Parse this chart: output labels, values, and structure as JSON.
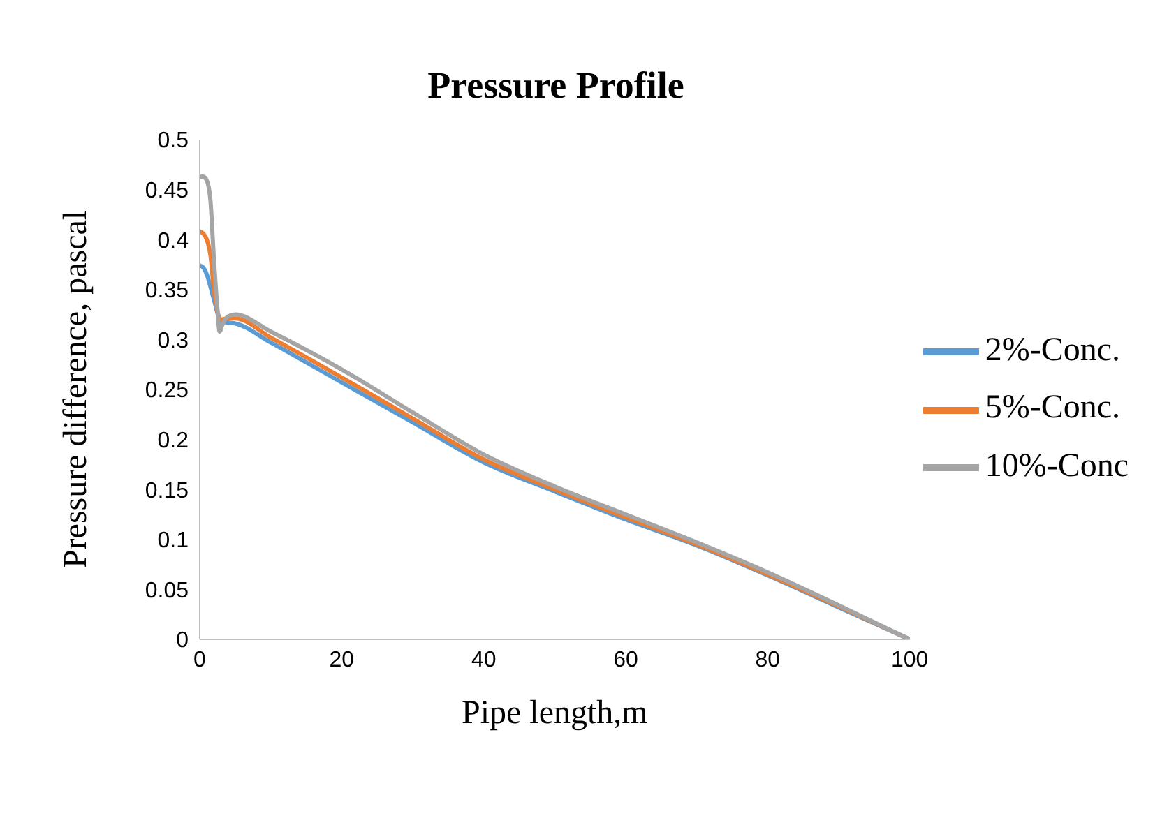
{
  "chart_data": {
    "type": "line",
    "title": "Pressure Profile",
    "xlabel": "Pipe length,m",
    "ylabel": "Pressure difference, pascal",
    "xlim": [
      0,
      100
    ],
    "xticks": [
      0,
      20,
      40,
      60,
      80,
      100
    ],
    "ylim": [
      0,
      0.5
    ],
    "yticks": [
      0,
      0.05,
      0.1,
      0.15,
      0.2,
      0.25,
      0.3,
      0.35,
      0.4,
      0.45,
      0.5
    ],
    "grid": false,
    "legend": "right",
    "marker": "none",
    "line_style": "solid",
    "series": [
      {
        "name": "2%-Conc.",
        "color": "#5b9bd5",
        "x": [
          0,
          0.5,
          1,
          2,
          3,
          4,
          5,
          10,
          20,
          30,
          40,
          50,
          60,
          70,
          80,
          90,
          100
        ],
        "values": [
          0.374,
          0.372,
          0.365,
          0.34,
          0.318,
          0.317,
          0.316,
          0.297,
          0.257,
          0.217,
          0.177,
          0.148,
          0.12,
          0.094,
          0.064,
          0.032,
          0
        ]
      },
      {
        "name": "5%-Conc.",
        "color": "#ed7d31",
        "x": [
          0,
          0.5,
          1,
          1.5,
          2,
          3,
          4,
          5,
          10,
          20,
          30,
          40,
          50,
          60,
          70,
          80,
          90,
          100
        ],
        "values": [
          0.408,
          0.406,
          0.4,
          0.385,
          0.35,
          0.32,
          0.321,
          0.321,
          0.302,
          0.262,
          0.221,
          0.18,
          0.15,
          0.122,
          0.095,
          0.065,
          0.033,
          0
        ]
      },
      {
        "name": "10%-Conc",
        "color": "#a5a5a5",
        "x": [
          0,
          0.5,
          1,
          1.5,
          2,
          2.5,
          2.8,
          3.2,
          4,
          5,
          10,
          20,
          30,
          40,
          50,
          60,
          70,
          80,
          90,
          100
        ],
        "values": [
          0.463,
          0.463,
          0.459,
          0.44,
          0.38,
          0.33,
          0.308,
          0.315,
          0.323,
          0.325,
          0.308,
          0.27,
          0.227,
          0.185,
          0.153,
          0.125,
          0.097,
          0.067,
          0.034,
          0
        ]
      }
    ]
  }
}
